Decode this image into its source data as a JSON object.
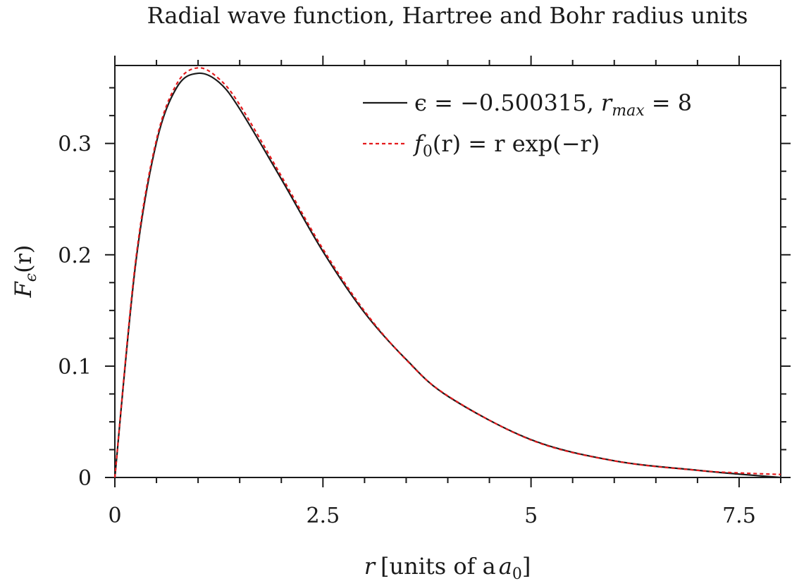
{
  "chart_data": {
    "type": "line",
    "title": "Radial wave function, Hartree and Bohr radius units",
    "xlabel": {
      "var": "r",
      "text": "[units of a",
      "sub": "0",
      "close": "]"
    },
    "ylabel": {
      "var": "F",
      "sub": "ϵ",
      "arg": "(r)"
    },
    "xlim": [
      0,
      8
    ],
    "ylim": [
      0,
      0.37
    ],
    "x_ticks": [
      0,
      2.5,
      5,
      7.5
    ],
    "x_tick_labels": [
      "0",
      "2.5",
      "5",
      "7.5"
    ],
    "x_minor_step": 0.5,
    "y_ticks": [
      0,
      0.1,
      0.2,
      0.3
    ],
    "y_tick_labels": [
      "0",
      "0.1",
      "0.2",
      "0.3"
    ],
    "y_minor_step": 0.025,
    "grid": false,
    "legend_position": "top-right",
    "series": [
      {
        "name": "ϵ = −0.500315, r_max = 8",
        "legend": {
          "lhs": "ϵ = −0.500315, ",
          "var": "r",
          "sub": "max",
          "rhs": " = 8"
        },
        "color": "#1a1a1a",
        "style": "solid",
        "x": [
          0,
          0.25,
          0.5,
          0.75,
          1.0,
          1.25,
          1.5,
          2.0,
          2.5,
          3.0,
          3.5,
          4.0,
          5.0,
          6.0,
          7.0,
          7.5,
          8.0
        ],
        "y": [
          0,
          0.192,
          0.301,
          0.351,
          0.363,
          0.355,
          0.331,
          0.268,
          0.203,
          0.148,
          0.106,
          0.073,
          0.034,
          0.015,
          0.0065,
          0.003,
          0
        ]
      },
      {
        "name": "f0(r) = r exp(−r)",
        "legend": {
          "func": "f",
          "sub": "0",
          "rhs": "(r) = r exp(−r)"
        },
        "color": "#e41a1c",
        "style": "dashed",
        "x": [
          0,
          0.25,
          0.5,
          0.75,
          1.0,
          1.25,
          1.5,
          2.0,
          2.5,
          3.0,
          3.5,
          4.0,
          5.0,
          6.0,
          7.0,
          7.5,
          8.0
        ],
        "y": [
          0,
          0.1947,
          0.3033,
          0.3543,
          0.3679,
          0.3581,
          0.3347,
          0.2707,
          0.2052,
          0.1494,
          0.1057,
          0.0733,
          0.0337,
          0.0149,
          0.0064,
          0.0041,
          0.0027
        ]
      }
    ]
  }
}
